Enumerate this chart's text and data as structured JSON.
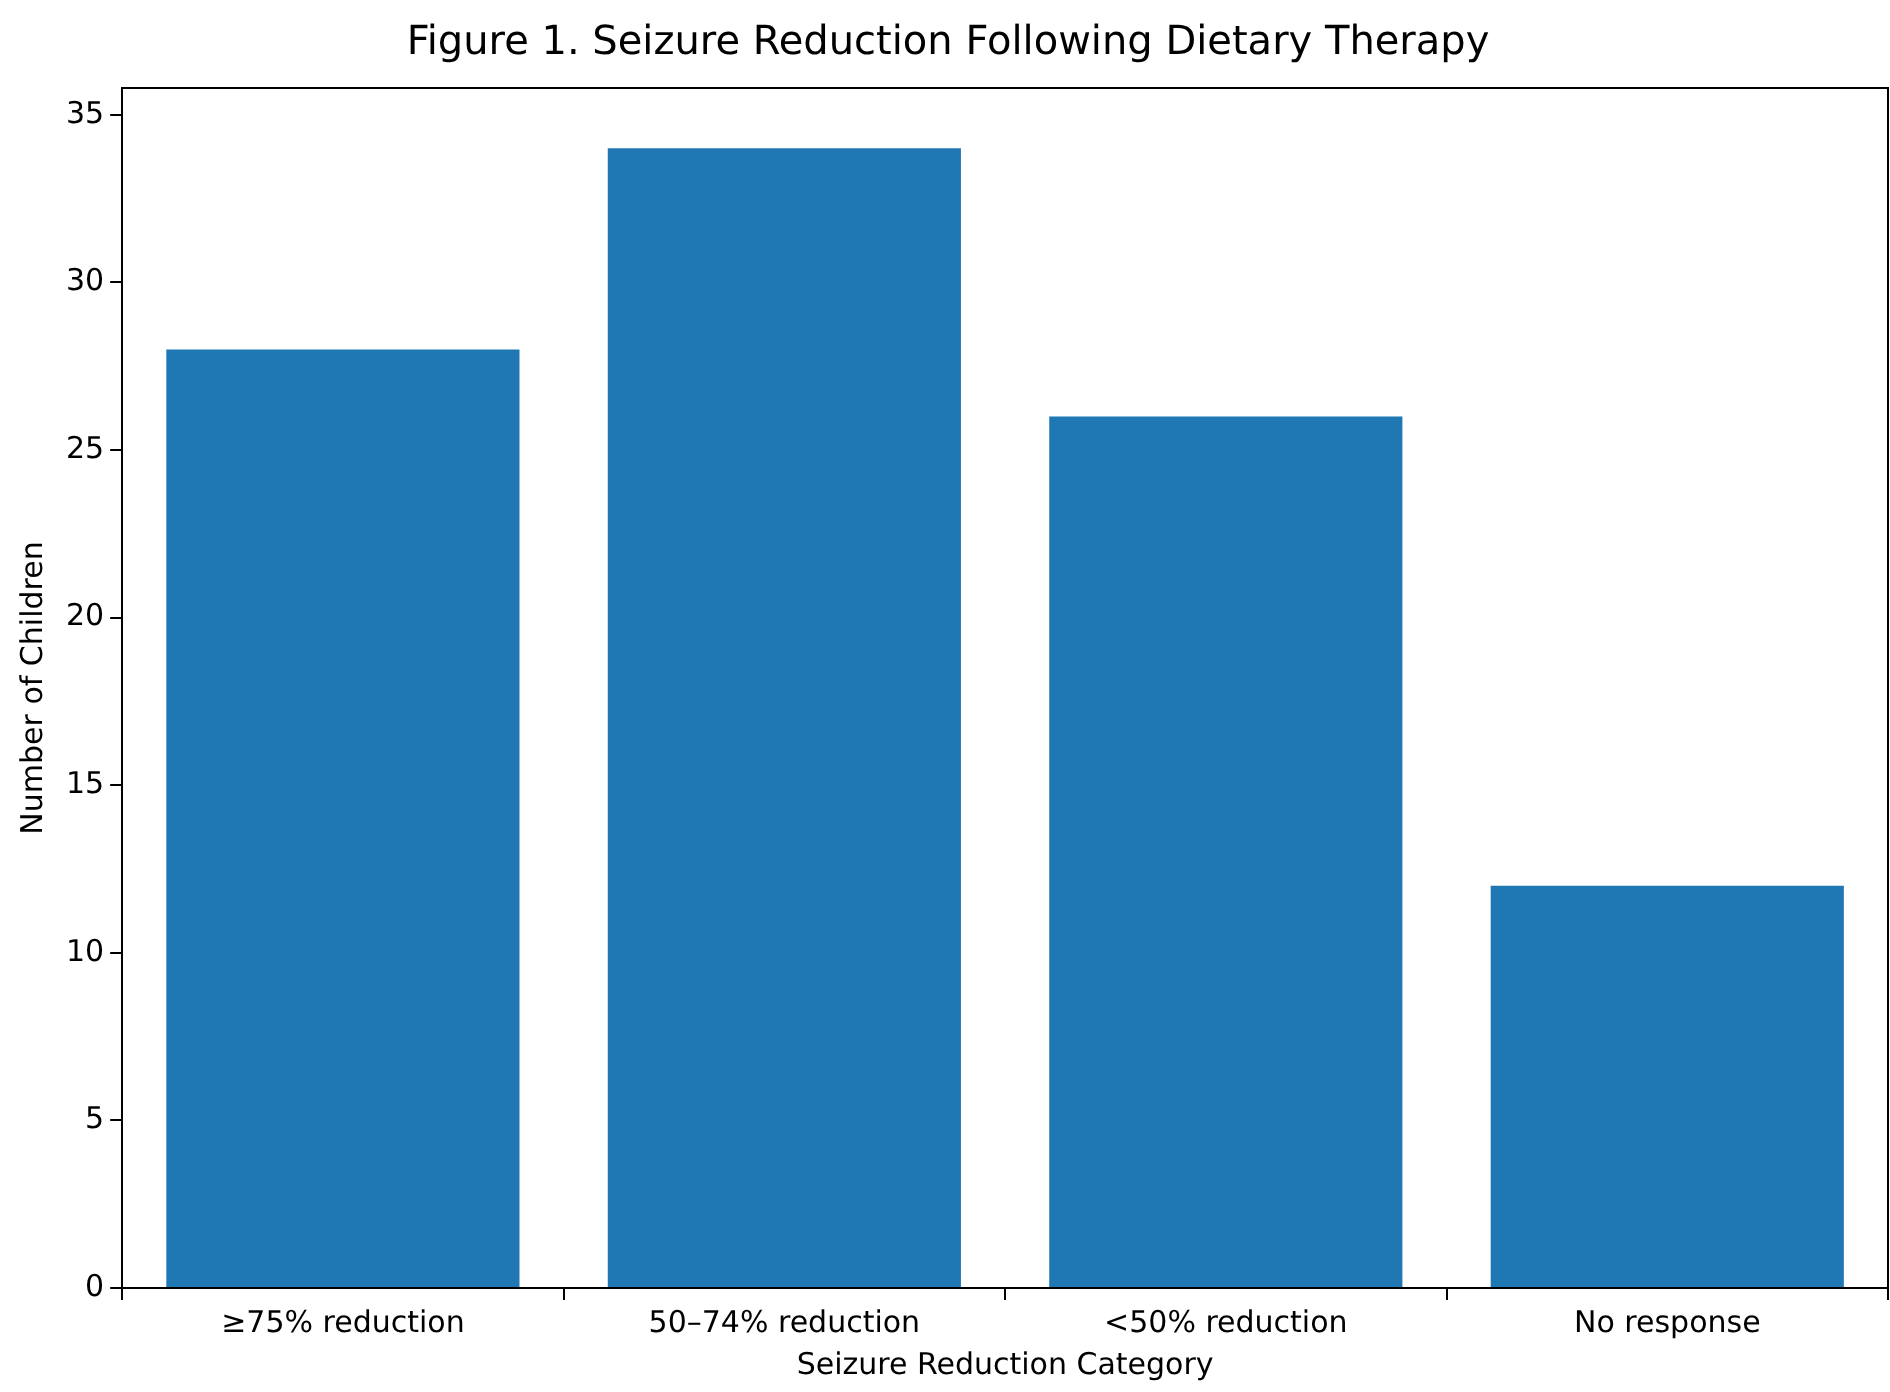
{
  "chart_data": {
    "type": "bar",
    "title": "Figure 1. Seizure Reduction Following Dietary Therapy",
    "xlabel": "Seizure Reduction Category",
    "ylabel": "Number of Children",
    "categories": [
      "≥75% reduction",
      "50–74% reduction",
      "<50% reduction",
      "No response"
    ],
    "values": [
      28,
      34,
      26,
      12
    ],
    "color": "#1f77b4",
    "ylim": [
      0,
      35.8
    ],
    "yticks": [
      0,
      5,
      10,
      15,
      20,
      25,
      30,
      35
    ],
    "grid": false,
    "legend": false
  }
}
